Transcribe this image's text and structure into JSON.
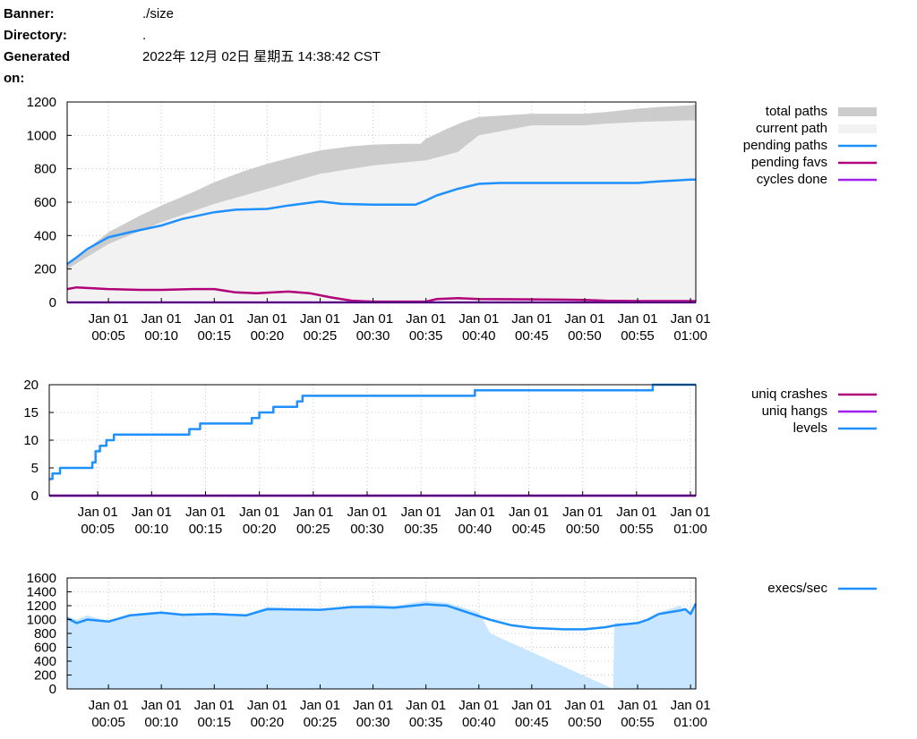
{
  "header": {
    "banner_label": "Banner:",
    "banner_value": "./size",
    "directory_label": "Directory:",
    "directory_value": ".",
    "generated_label": "Generated on:",
    "generated_value": "2022年 12月 02日 星期五 14:38:42 CST"
  },
  "chart_data": [
    {
      "type": "area",
      "x_tick_labels": [
        [
          "Jan 01",
          "00:05"
        ],
        [
          "Jan 01",
          "00:10"
        ],
        [
          "Jan 01",
          "00:15"
        ],
        [
          "Jan 01",
          "00:20"
        ],
        [
          "Jan 01",
          "00:25"
        ],
        [
          "Jan 01",
          "00:30"
        ],
        [
          "Jan 01",
          "00:35"
        ],
        [
          "Jan 01",
          "00:40"
        ],
        [
          "Jan 01",
          "00:45"
        ],
        [
          "Jan 01",
          "00:50"
        ],
        [
          "Jan 01",
          "00:55"
        ],
        [
          "Jan 01",
          "01:00"
        ]
      ],
      "x_tick_minutes": [
        5,
        10,
        15,
        20,
        25,
        30,
        35,
        40,
        45,
        50,
        55,
        60
      ],
      "xlim": [
        1.1,
        60.5
      ],
      "ylim": [
        0,
        1200
      ],
      "y_ticks": [
        0,
        200,
        400,
        600,
        800,
        1000,
        1200
      ],
      "grid": true,
      "legend_position": "right",
      "series": [
        {
          "name": "total paths",
          "style": "area",
          "color": "#cccccc",
          "x": [
            1.1,
            3,
            5,
            8,
            10,
            13,
            15,
            18,
            20,
            23,
            25,
            28,
            30,
            33,
            34.5,
            35,
            37,
            38.5,
            40,
            45,
            50,
            52,
            55,
            57,
            60,
            60.5
          ],
          "y": [
            230,
            320,
            420,
            520,
            580,
            660,
            720,
            790,
            830,
            880,
            910,
            935,
            945,
            950,
            950,
            980,
            1040,
            1080,
            1110,
            1130,
            1130,
            1140,
            1160,
            1170,
            1180,
            1185
          ]
        },
        {
          "name": "current path",
          "style": "area",
          "color": "#f2f2f2",
          "x": [
            1.1,
            5,
            10,
            15,
            20,
            25,
            30,
            35,
            38,
            40,
            45,
            50,
            52,
            55,
            60,
            60.5
          ],
          "y": [
            200,
            350,
            480,
            590,
            680,
            770,
            820,
            850,
            900,
            1000,
            1060,
            1060,
            1070,
            1080,
            1090,
            1090
          ]
        },
        {
          "name": "pending paths",
          "style": "line",
          "color": "#1e90ff",
          "x": [
            1.1,
            2,
            3,
            5,
            7,
            10,
            12,
            15,
            17,
            20,
            22,
            25,
            27,
            30,
            34,
            35,
            36,
            38,
            40,
            42,
            45,
            50,
            55,
            57,
            60,
            60.5
          ],
          "y": [
            230,
            270,
            320,
            390,
            420,
            460,
            500,
            540,
            555,
            560,
            580,
            605,
            590,
            585,
            585,
            610,
            640,
            680,
            710,
            715,
            715,
            715,
            715,
            725,
            735,
            735
          ]
        },
        {
          "name": "pending favs",
          "style": "line",
          "color": "#b0007a",
          "x": [
            1.1,
            2,
            5,
            8,
            10,
            13,
            15,
            17,
            19,
            22,
            24,
            26,
            28,
            30,
            35,
            36,
            38,
            40,
            45,
            50,
            52,
            55,
            60,
            60.5
          ],
          "y": [
            80,
            90,
            80,
            75,
            75,
            80,
            80,
            60,
            55,
            65,
            55,
            30,
            10,
            5,
            5,
            20,
            25,
            20,
            18,
            15,
            10,
            8,
            8,
            8
          ]
        },
        {
          "name": "cycles done",
          "style": "line",
          "color": "#a020f0",
          "x": [
            1.1,
            60.5
          ],
          "y": [
            0,
            0
          ]
        }
      ]
    },
    {
      "type": "line",
      "x_tick_labels": [
        [
          "Jan 01",
          "00:05"
        ],
        [
          "Jan 01",
          "00:10"
        ],
        [
          "Jan 01",
          "00:15"
        ],
        [
          "Jan 01",
          "00:20"
        ],
        [
          "Jan 01",
          "00:25"
        ],
        [
          "Jan 01",
          "00:30"
        ],
        [
          "Jan 01",
          "00:35"
        ],
        [
          "Jan 01",
          "00:40"
        ],
        [
          "Jan 01",
          "00:45"
        ],
        [
          "Jan 01",
          "00:50"
        ],
        [
          "Jan 01",
          "00:55"
        ],
        [
          "Jan 01",
          "01:00"
        ]
      ],
      "x_tick_minutes": [
        5,
        10,
        15,
        20,
        25,
        30,
        35,
        40,
        45,
        50,
        55,
        60
      ],
      "xlim": [
        0.5,
        60.5
      ],
      "ylim": [
        0,
        20
      ],
      "y_ticks": [
        0,
        5,
        10,
        15,
        20
      ],
      "grid": true,
      "legend_position": "right",
      "series": [
        {
          "name": "uniq crashes",
          "style": "line",
          "color": "#b0007a",
          "x": [
            0.5,
            60.5
          ],
          "y": [
            0,
            0
          ]
        },
        {
          "name": "uniq hangs",
          "style": "line",
          "color": "#a020f0",
          "x": [
            0.5,
            60.5
          ],
          "y": [
            0,
            0
          ]
        },
        {
          "name": "levels",
          "style": "step",
          "color": "#1e90ff",
          "x": [
            0.5,
            0.8,
            1.5,
            2.5,
            4.5,
            4.8,
            5.2,
            5.8,
            6.5,
            13,
            13.5,
            14.5,
            19,
            19.3,
            20,
            21,
            21.3,
            23,
            23.5,
            24,
            40,
            55.5,
            56.5,
            60.5
          ],
          "y": [
            3,
            4,
            5,
            5,
            6,
            8,
            9,
            10,
            11,
            11,
            12,
            13,
            13,
            14,
            15,
            15,
            16,
            16,
            17,
            18,
            19,
            19,
            20,
            20
          ]
        }
      ]
    },
    {
      "type": "area",
      "x_tick_labels": [
        [
          "Jan 01",
          "00:05"
        ],
        [
          "Jan 01",
          "00:10"
        ],
        [
          "Jan 01",
          "00:15"
        ],
        [
          "Jan 01",
          "00:20"
        ],
        [
          "Jan 01",
          "00:25"
        ],
        [
          "Jan 01",
          "00:30"
        ],
        [
          "Jan 01",
          "00:35"
        ],
        [
          "Jan 01",
          "00:40"
        ],
        [
          "Jan 01",
          "00:45"
        ],
        [
          "Jan 01",
          "00:50"
        ],
        [
          "Jan 01",
          "00:55"
        ],
        [
          "Jan 01",
          "01:00"
        ]
      ],
      "x_tick_minutes": [
        5,
        10,
        15,
        20,
        25,
        30,
        35,
        40,
        45,
        50,
        55,
        60
      ],
      "xlim": [
        1.1,
        60.5
      ],
      "ylim": [
        0,
        1600
      ],
      "y_ticks": [
        0,
        200,
        400,
        600,
        800,
        1000,
        1200,
        1400,
        1600
      ],
      "grid": true,
      "legend_position": "right",
      "series": [
        {
          "name": "",
          "style": "area",
          "color": "#c8e6ff",
          "x": [
            1.1,
            2,
            3,
            5,
            7,
            10,
            12,
            15,
            18,
            20,
            25,
            28,
            30,
            32,
            35,
            37,
            39,
            40,
            41.1,
            52.7,
            52.8,
            55,
            57,
            59,
            60,
            60.5
          ],
          "y": [
            1050,
            1000,
            1060,
            980,
            1080,
            1120,
            1060,
            1080,
            1080,
            1180,
            1150,
            1200,
            1220,
            1200,
            1270,
            1240,
            1150,
            1100,
            800,
            0,
            950,
            950,
            1100,
            1200,
            1050,
            1250
          ]
        },
        {
          "name": "execs/sec",
          "style": "line",
          "color": "#1e90ff",
          "x": [
            1.1,
            2,
            3,
            5,
            7,
            10,
            12,
            15,
            18,
            20,
            25,
            28,
            30,
            32,
            35,
            37,
            39,
            41,
            43,
            45,
            48,
            50,
            52,
            53,
            55,
            56,
            57,
            59,
            59.5,
            60,
            60.5
          ],
          "y": [
            1020,
            950,
            1000,
            970,
            1060,
            1100,
            1070,
            1080,
            1060,
            1150,
            1140,
            1180,
            1180,
            1170,
            1220,
            1200,
            1100,
            1000,
            920,
            880,
            860,
            860,
            890,
            920,
            950,
            1000,
            1080,
            1130,
            1150,
            1080,
            1230
          ]
        }
      ]
    }
  ]
}
